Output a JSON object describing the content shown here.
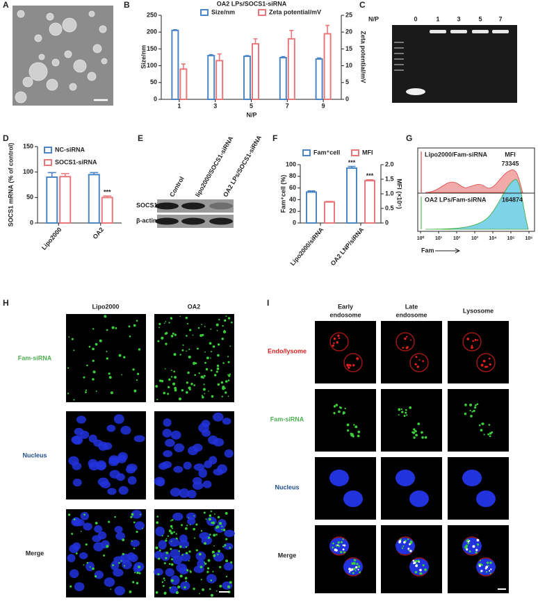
{
  "panel_labels": [
    "A",
    "B",
    "C",
    "D",
    "E",
    "F",
    "G",
    "H",
    "I"
  ],
  "chart_data": [
    {
      "type": "bar",
      "title": "OA2 LPs/SOCS1-siRNA",
      "xlabel": "N/P",
      "ylabel": "Size/nm",
      "y2label": "Zeta potential/mV",
      "categories": [
        "1",
        "3",
        "5",
        "7",
        "9"
      ],
      "ylim": [
        0,
        250
      ],
      "yticks": [
        0,
        50,
        100,
        150,
        200,
        250
      ],
      "y2lim": [
        0,
        25
      ],
      "y2ticks": [
        0,
        5,
        10,
        15,
        20,
        25
      ],
      "series": [
        {
          "name": "Size/nm",
          "color": "#4a86c5",
          "values": [
            205,
            130,
            128,
            124,
            120
          ],
          "errors": [
            2,
            3,
            2,
            3,
            3
          ]
        },
        {
          "name": "Zeta potential/mV",
          "color": "#e8777b",
          "axis": "y2",
          "values": [
            9,
            11.5,
            16.5,
            18,
            19.5
          ],
          "errors": [
            1.5,
            2,
            1.5,
            2.5,
            2.5
          ]
        }
      ]
    },
    {
      "type": "bar",
      "ylabel": "SOCS1 mRNA (% of control)",
      "categories": [
        "Lipo2000",
        "OA2"
      ],
      "ylim": [
        0,
        150
      ],
      "yticks": [
        0,
        50,
        100,
        150
      ],
      "series": [
        {
          "name": "NC-siRNA",
          "color": "#4a86c5",
          "values": [
            90,
            95
          ],
          "errors": [
            9,
            4
          ]
        },
        {
          "name": "SOCS1-siRNA",
          "color": "#e8777b",
          "values": [
            91,
            50
          ],
          "errors": [
            6,
            3
          ],
          "annotations": [
            null,
            "***"
          ]
        }
      ]
    },
    {
      "type": "bar",
      "ylabel": "Fam⁺cell (%)",
      "y2label": "MFI (×10⁵)",
      "categories": [
        "Lipo2000/siRNA",
        "OA2 LNP/siRNA"
      ],
      "ylim": [
        0,
        100
      ],
      "yticks": [
        0,
        20,
        40,
        60,
        80,
        100
      ],
      "y2lim": [
        0,
        2
      ],
      "y2ticks": [
        0,
        0.5,
        {
          "value": 1,
          "label": "1.0"
        },
        1.5,
        {
          "value": 2,
          "label": "2.0"
        }
      ],
      "series": [
        {
          "name": "Fam⁺cell",
          "color": "#4a86c5",
          "values": [
            53,
            94
          ],
          "errors": [
            2,
            3
          ],
          "annotations": [
            null,
            "***"
          ]
        },
        {
          "name": "MFI",
          "color": "#e8777b",
          "axis": "y2",
          "values": [
            0.72,
            1.45
          ],
          "errors": [
            0.02,
            0.03
          ],
          "annotations": [
            null,
            "***"
          ]
        }
      ]
    }
  ],
  "gel": {
    "label": "N/P",
    "lanes": [
      "0",
      "1",
      "3",
      "5",
      "7"
    ]
  },
  "western_blot": {
    "lanes": [
      "Control",
      "lipo2000/SOCS1-siRNA",
      "OA2 LPs/SOCS1-siRNA"
    ],
    "rows": [
      "SOCS1",
      "β-actin"
    ]
  },
  "flow": {
    "samples": [
      {
        "name": "Lipo2000/Fam-siRNA",
        "mfi": "73345"
      },
      {
        "name": "OA2 LPs/Fam-siRNA",
        "mfi": "164874"
      }
    ],
    "mfi_label": "MFI",
    "xticks": [
      "10⁰",
      "10¹",
      "10²",
      "10³",
      "10⁴",
      "10⁵",
      "10⁶"
    ],
    "xlabel": "Fam"
  },
  "microscopy_h": {
    "columns": [
      "Lipo2000",
      "OA2"
    ],
    "rows": [
      "Fam-siRNA",
      "Nucleus",
      "Merge"
    ]
  },
  "microscopy_i": {
    "columns": [
      [
        "Early",
        "endosome"
      ],
      [
        "Late",
        "endosome"
      ],
      [
        "Lysosome"
      ]
    ],
    "rows": [
      "Endo/lysome",
      "Fam-siRNA",
      "Nucleus",
      "Merge"
    ]
  }
}
